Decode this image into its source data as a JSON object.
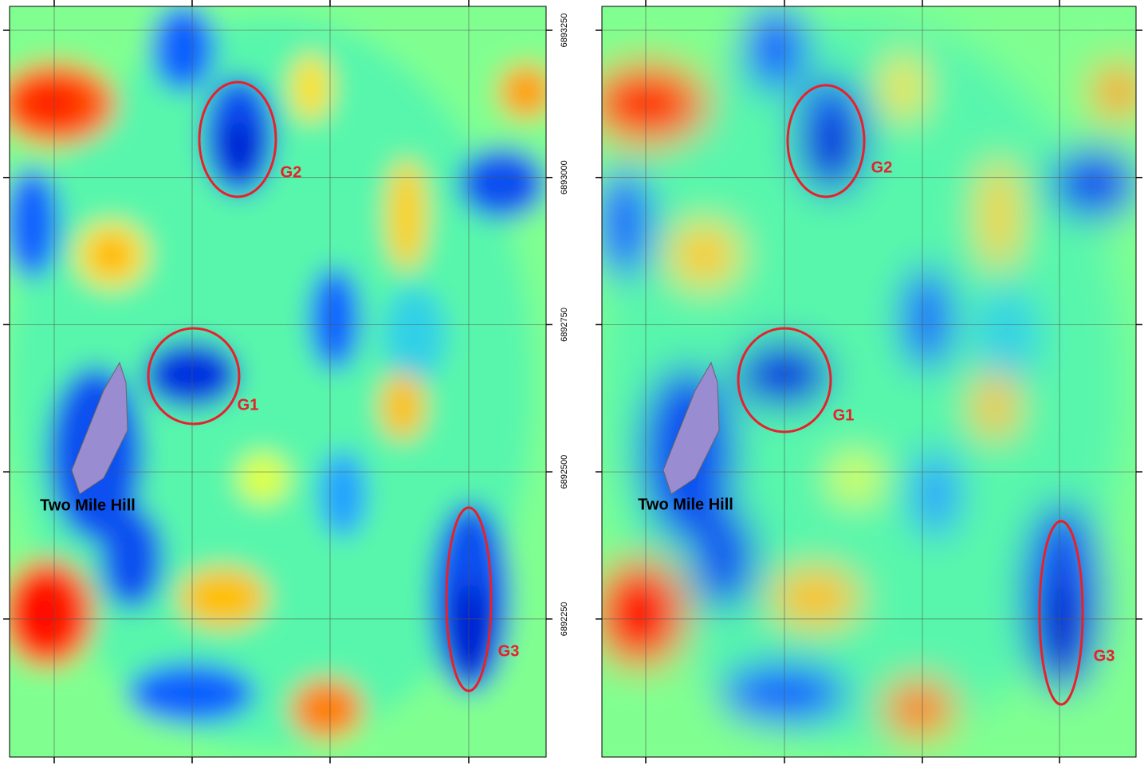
{
  "panels": [
    {
      "anomalies": [
        "G1",
        "G2",
        "G3"
      ],
      "place": "Two Mile Hill"
    },
    {
      "anomalies": [
        "G1",
        "G2",
        "G3"
      ],
      "place": "Two Mile Hill"
    }
  ],
  "northing_ticks": [
    6893250,
    6893000,
    6892750,
    6892500,
    6892250
  ]
}
